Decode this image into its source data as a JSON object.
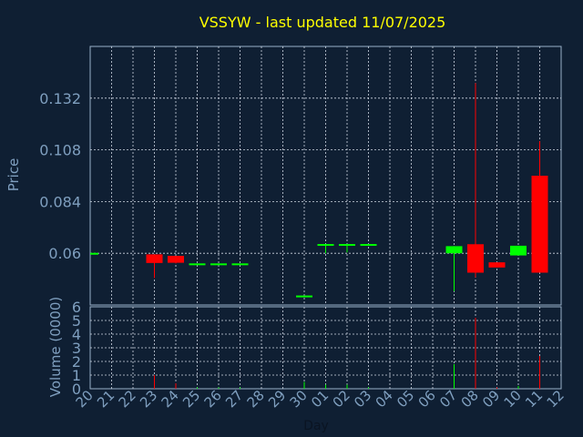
{
  "colors": {
    "background": "#0f1f33",
    "frame": "#9ab0c8",
    "grid": "#cfd8e3",
    "title": "#ffff00",
    "axis_text": "#7f9fbf",
    "up": "#00ff00",
    "down": "#ff0000"
  },
  "chart_data": {
    "type": "candlestick",
    "title": "VSSYW - last updated 11/07/2025",
    "xlabel": "Day",
    "price_ylabel": "Price",
    "volume_ylabel": "Volume (0000)",
    "x_tick_labels": [
      "20",
      "21",
      "22",
      "23",
      "24",
      "25",
      "26",
      "27",
      "28",
      "29",
      "30",
      "01",
      "02",
      "03",
      "04",
      "05",
      "06",
      "07",
      "08",
      "09",
      "10",
      "11",
      "12"
    ],
    "price_ticks": [
      "0.06",
      "0.084",
      "0.108",
      "0.132"
    ],
    "price_ylim": [
      0.036,
      0.156
    ],
    "volume_ticks": [
      "0",
      "1",
      "2",
      "3",
      "4",
      "5",
      "6"
    ],
    "volume_ylim": [
      0,
      6
    ],
    "grid": true,
    "candles": [
      {
        "day": "20",
        "open": 0.0602,
        "high": 0.0602,
        "low": 0.0602,
        "close": 0.0602,
        "volume": 0.0
      },
      {
        "day": "23",
        "open": 0.0595,
        "high": 0.0595,
        "low": 0.0485,
        "close": 0.0555,
        "volume": 1.0
      },
      {
        "day": "24",
        "open": 0.0588,
        "high": 0.0588,
        "low": 0.0553,
        "close": 0.0556,
        "volume": 0.4
      },
      {
        "day": "25",
        "open": 0.0553,
        "high": 0.0553,
        "low": 0.0553,
        "close": 0.0553,
        "volume": 0.1
      },
      {
        "day": "26",
        "open": 0.0553,
        "high": 0.0553,
        "low": 0.0553,
        "close": 0.0553,
        "volume": 0.1
      },
      {
        "day": "27",
        "open": 0.0553,
        "high": 0.0553,
        "low": 0.0553,
        "close": 0.0553,
        "volume": 0.1
      },
      {
        "day": "30",
        "open": 0.0404,
        "high": 0.0404,
        "low": 0.0404,
        "close": 0.0404,
        "volume": 0.5
      },
      {
        "day": "01",
        "open": 0.0637,
        "high": 0.0643,
        "low": 0.06,
        "close": 0.0643,
        "volume": 0.3
      },
      {
        "day": "02",
        "open": 0.0637,
        "high": 0.0643,
        "low": 0.0604,
        "close": 0.0643,
        "volume": 0.3
      },
      {
        "day": "03",
        "open": 0.0637,
        "high": 0.0643,
        "low": 0.0637,
        "close": 0.0643,
        "volume": 0.1
      },
      {
        "day": "07",
        "open": 0.06,
        "high": 0.0633,
        "low": 0.0424,
        "close": 0.0633,
        "volume": 1.8
      },
      {
        "day": "08",
        "open": 0.0642,
        "high": 0.139,
        "low": 0.0488,
        "close": 0.051,
        "volume": 5.2
      },
      {
        "day": "09",
        "open": 0.0558,
        "high": 0.0558,
        "low": 0.0534,
        "close": 0.0534,
        "volume": 0.1
      },
      {
        "day": "10",
        "open": 0.059,
        "high": 0.0635,
        "low": 0.059,
        "close": 0.0635,
        "volume": 0.2
      },
      {
        "day": "11",
        "open": 0.096,
        "high": 0.112,
        "low": 0.051,
        "close": 0.051,
        "volume": 2.4
      }
    ]
  }
}
